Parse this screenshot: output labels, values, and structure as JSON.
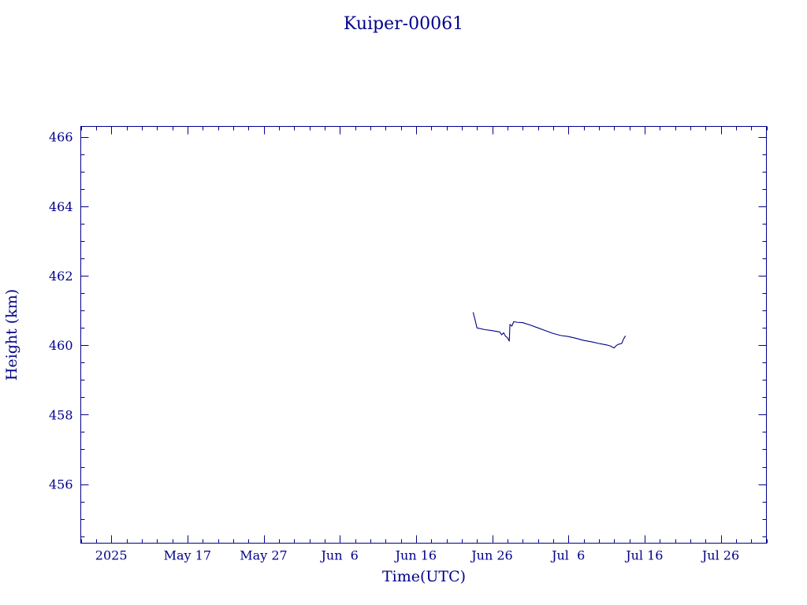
{
  "chart_data": {
    "type": "line",
    "title": "Kuiper-00061",
    "xlabel": "Time(UTC)",
    "ylabel": "Height (km)",
    "xlim": [
      "2025-05-03",
      "2025-08-01"
    ],
    "ylim": [
      454.3,
      466.3
    ],
    "x_major_ticks": [
      "2025-05-07",
      "2025-05-17",
      "2025-05-27",
      "2025-06-06",
      "2025-06-16",
      "2025-06-26",
      "2025-07-06",
      "2025-07-16",
      "2025-07-26"
    ],
    "x_tick_labels": [
      "2025",
      "May 17",
      "May 27",
      "Jun  6",
      "Jun 16",
      "Jun 26",
      "Jul  6",
      "Jul 16",
      "Jul 26"
    ],
    "y_major_ticks": [
      456,
      458,
      460,
      462,
      464,
      466
    ],
    "y_tick_labels": [
      "456",
      "458",
      "460",
      "462",
      "464",
      "466"
    ],
    "y_minor_step": 0.5,
    "grid": false,
    "series": [
      {
        "color": "#00008b",
        "points": [
          [
            "2025-06-23T12:00",
            460.95
          ],
          [
            "2025-06-23T19:00",
            460.7
          ],
          [
            "2025-06-24T00:00",
            460.5
          ],
          [
            "2025-06-25T00:00",
            460.45
          ],
          [
            "2025-06-26T00:00",
            460.42
          ],
          [
            "2025-06-27T00:00",
            460.38
          ],
          [
            "2025-06-27T06:00",
            460.3
          ],
          [
            "2025-06-27T12:00",
            460.36
          ],
          [
            "2025-06-27T18:00",
            460.26
          ],
          [
            "2025-06-28T00:00",
            460.22
          ],
          [
            "2025-06-28T06:00",
            460.12
          ],
          [
            "2025-06-28T08:00",
            460.6
          ],
          [
            "2025-06-28T14:00",
            460.55
          ],
          [
            "2025-06-28T20:00",
            460.68
          ],
          [
            "2025-06-29T06:00",
            460.66
          ],
          [
            "2025-06-30T00:00",
            460.65
          ],
          [
            "2025-07-01T00:00",
            460.58
          ],
          [
            "2025-07-02T00:00",
            460.5
          ],
          [
            "2025-07-03T00:00",
            460.42
          ],
          [
            "2025-07-04T00:00",
            460.34
          ],
          [
            "2025-07-05T00:00",
            460.28
          ],
          [
            "2025-07-06T00:00",
            460.25
          ],
          [
            "2025-07-07T00:00",
            460.2
          ],
          [
            "2025-07-08T00:00",
            460.14
          ],
          [
            "2025-07-09T00:00",
            460.1
          ],
          [
            "2025-07-10T00:00",
            460.05
          ],
          [
            "2025-07-11T00:00",
            460.01
          ],
          [
            "2025-07-11T12:00",
            459.98
          ],
          [
            "2025-07-12T00:00",
            459.92
          ],
          [
            "2025-07-12T06:00",
            459.98
          ],
          [
            "2025-07-12T12:00",
            460.02
          ],
          [
            "2025-07-13T00:00",
            460.05
          ],
          [
            "2025-07-13T06:00",
            460.18
          ],
          [
            "2025-07-13T12:00",
            460.27
          ]
        ]
      }
    ]
  }
}
